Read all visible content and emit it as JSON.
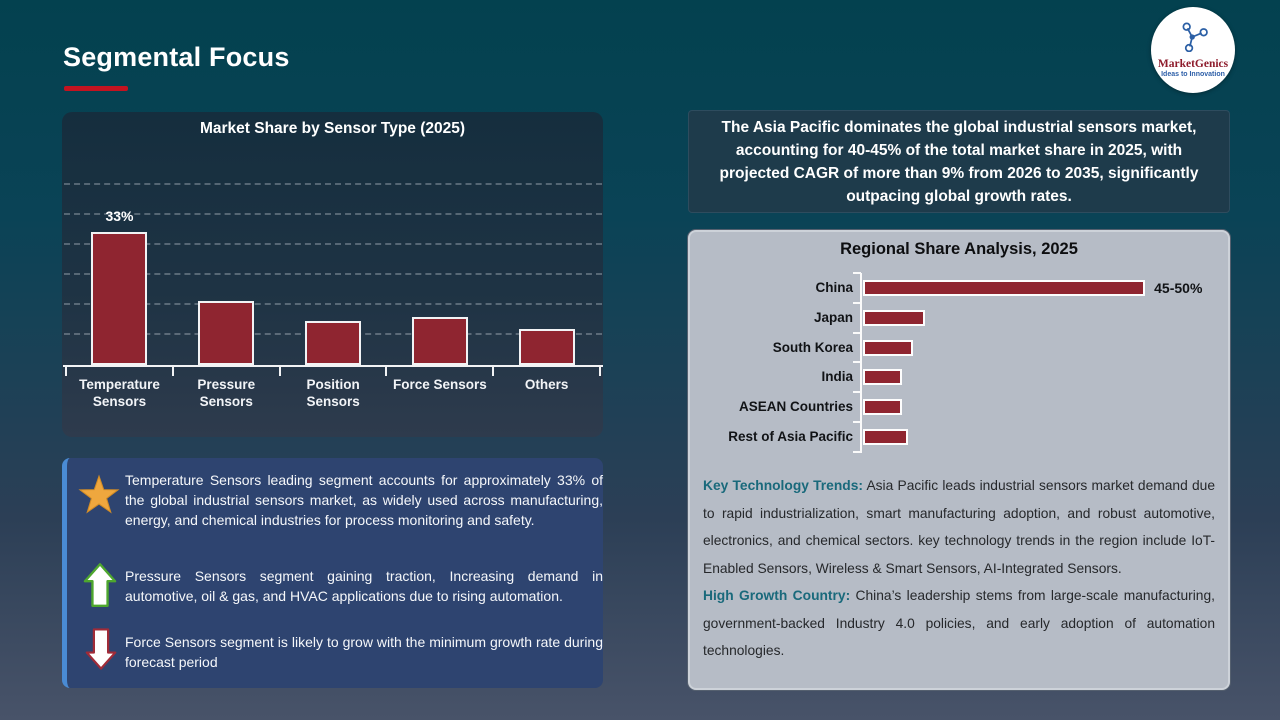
{
  "slide": {
    "title": "Segmental Focus"
  },
  "logo": {
    "brand": "MarketGenics",
    "tagline": "Ideas to Innovation"
  },
  "callout": {
    "text": "The Asia Pacific dominates the global industrial sensors market, accounting for 40-45% of the total market share in 2025, with projected CAGR of more than 9% from 2026 to 2035, significantly outpacing global growth rates."
  },
  "insights": {
    "items": [
      {
        "icon": "star",
        "text": "Temperature Sensors leading segment accounts for approximately 33% of the global industrial sensors market, as widely used across manufacturing, energy, and chemical industries for process monitoring and safety."
      },
      {
        "icon": "up-arrow",
        "text": "Pressure Sensors segment gaining traction, Increasing demand in automotive, oil & gas, and HVAC applications due to rising automation."
      },
      {
        "icon": "down-arrow",
        "text": "Force Sensors segment is likely to grow with the minimum growth rate during forecast period"
      }
    ]
  },
  "notes": {
    "items": [
      {
        "lead": "Key Technology Trends:",
        "text": "Asia Pacific leads industrial sensors market demand due to rapid industrialization, smart manufacturing adoption, and robust automotive, electronics, and chemical sectors. key technology trends in the region include IoT-Enabled Sensors, Wireless & Smart Sensors, AI-Integrated Sensors."
      },
      {
        "lead": "High Growth Country:",
        "text": "China’s leadership stems from large-scale manufacturing, government-backed Industry 4.0 policies, and early adoption of automation technologies."
      }
    ]
  },
  "chart_data": [
    {
      "type": "bar",
      "title": "Market Share by Sensor Type (2025)",
      "categories": [
        "Temperature Sensors",
        "Pressure Sensors",
        "Position Sensors",
        "Force Sensors",
        "Others"
      ],
      "label_lines": [
        [
          "Temperature",
          "Sensors"
        ],
        [
          "Pressure",
          "Sensors"
        ],
        [
          "Position",
          "Sensors"
        ],
        [
          "Force Sensors"
        ],
        [
          "Others"
        ]
      ],
      "values": [
        33,
        16,
        11,
        12,
        9
      ],
      "data_labels": [
        "33%",
        "",
        "",
        "",
        ""
      ],
      "xlabel": "",
      "ylabel": "",
      "ylim": [
        0,
        42
      ],
      "grid": "dashed-horizontal",
      "legend": "none",
      "bar_color": "#8F2530"
    },
    {
      "type": "bar",
      "orientation": "horizontal",
      "title": "Regional Share Analysis, 2025",
      "categories": [
        "China",
        "Japan",
        "South Korea",
        "India",
        "ASEAN Countries",
        "Rest of Asia Pacific"
      ],
      "values": [
        47.5,
        10.5,
        8.5,
        6.5,
        6.5,
        7.5
      ],
      "data_labels": [
        "45-50%",
        "",
        "",
        "",
        "",
        ""
      ],
      "xlabel": "",
      "ylabel": "",
      "grid": "off",
      "legend": "none",
      "bar_color": "#8F2530"
    }
  ]
}
